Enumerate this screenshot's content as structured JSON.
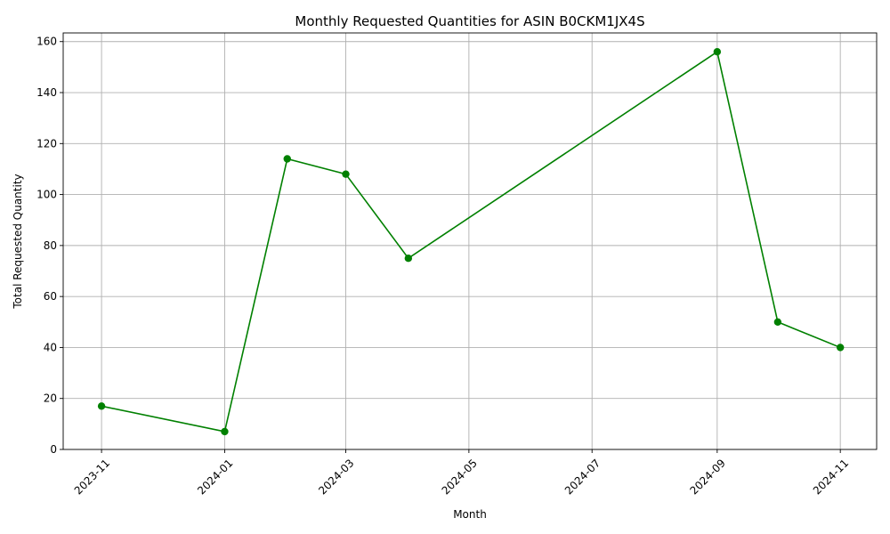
{
  "chart_data": {
    "type": "line",
    "title": "Monthly Requested Quantities for ASIN B0CKM1JX4S",
    "xlabel": "Month",
    "ylabel": "Total Requested Quantity",
    "x": [
      "2023-11",
      "2024-01",
      "2024-02",
      "2024-03",
      "2024-04",
      "2024-09",
      "2024-10",
      "2024-11"
    ],
    "series": [
      {
        "values": [
          17,
          7,
          114,
          108,
          75,
          156,
          50,
          40
        ],
        "color": "#008000",
        "marker": "circle"
      }
    ],
    "x_ticks": [
      "2023-11",
      "2024-01",
      "2024-03",
      "2024-05",
      "2024-07",
      "2024-09",
      "2024-11"
    ],
    "y_ticks": [
      0,
      20,
      40,
      60,
      80,
      100,
      120,
      140,
      160
    ],
    "xlim": [
      "2023-10-13",
      "2024-11-19"
    ],
    "ylim": [
      0,
      163.4
    ],
    "grid": true,
    "x_tick_rotation": "45 degrees"
  }
}
